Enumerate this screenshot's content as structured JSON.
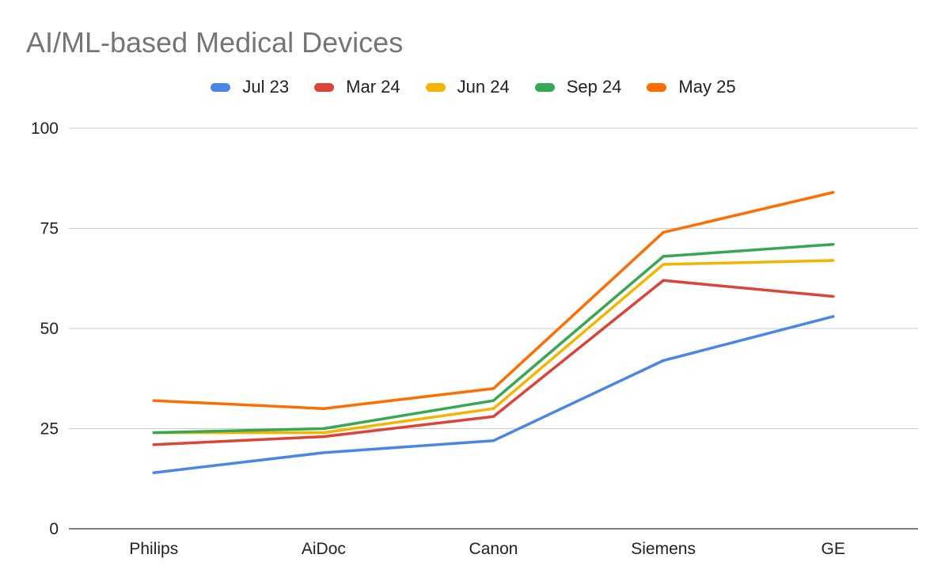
{
  "chart_data": {
    "type": "line",
    "title": "AI/ML-based Medical Devices",
    "xlabel": "",
    "ylabel": "",
    "categories": [
      "Philips",
      "AiDoc",
      "Canon",
      "Siemens",
      "GE"
    ],
    "ylim": [
      0,
      100
    ],
    "yticks": [
      0,
      25,
      50,
      75,
      100
    ],
    "grid": true,
    "legend_position": "top",
    "series": [
      {
        "name": "Jul 23",
        "color": "#4a86e8",
        "values": [
          14,
          19,
          22,
          42,
          53
        ]
      },
      {
        "name": "Mar 24",
        "color": "#db4437",
        "values": [
          21,
          23,
          28,
          62,
          58
        ]
      },
      {
        "name": "Jun 24",
        "color": "#f4b400",
        "values": [
          24,
          24,
          30,
          66,
          67
        ]
      },
      {
        "name": "Sep 24",
        "color": "#34a853",
        "values": [
          24,
          25,
          32,
          68,
          71
        ]
      },
      {
        "name": "May 25",
        "color": "#ff6d01",
        "values": [
          32,
          30,
          35,
          74,
          84
        ]
      }
    ]
  }
}
